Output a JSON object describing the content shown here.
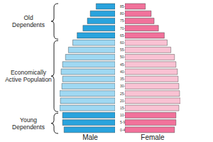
{
  "chart_data": {
    "type": "bar",
    "orientation": "horizontal",
    "tick_labels": "y",
    "categories": [
      "0-4",
      "5-9",
      "10-14",
      "15-19",
      "20-24",
      "25-29",
      "30-34",
      "35-39",
      "40-44",
      "45-49",
      "50-54",
      "55-59",
      "60-64",
      "65-69",
      "70-74",
      "75-79",
      "80-84",
      "85-89"
    ],
    "series": [
      {
        "name": "Male",
        "colors": [
          "#29a3dd",
          "#29a3dd",
          "#29a3dd",
          "#9fd8f2",
          "#9fd8f2",
          "#9fd8f2",
          "#9fd8f2",
          "#9fd8f2",
          "#9fd8f2",
          "#9fd8f2",
          "#9fd8f2",
          "#9fd8f2",
          "#9fd8f2",
          "#29a3dd",
          "#29a3dd",
          "#29a3dd",
          "#29a3dd",
          "#29a3dd"
        ],
        "values": [
          70,
          72,
          72,
          76,
          75,
          76,
          73,
          72,
          74,
          72,
          68,
          64,
          58,
          52,
          44,
          38,
          34,
          26
        ]
      },
      {
        "name": "Female",
        "colors": [
          "#f1729b",
          "#f1729b",
          "#f1729b",
          "#f9c2d3",
          "#f9c2d3",
          "#f9c2d3",
          "#f9c2d3",
          "#f9c2d3",
          "#f9c2d3",
          "#f9c2d3",
          "#f9c2d3",
          "#f9c2d3",
          "#f9c2d3",
          "#f1729b",
          "#f1729b",
          "#f1729b",
          "#f1729b",
          "#f1729b"
        ],
        "values": [
          68,
          70,
          70,
          74,
          76,
          75,
          74,
          73,
          72,
          70,
          68,
          63,
          58,
          54,
          46,
          40,
          36,
          28
        ]
      }
    ],
    "annotations": [
      "Old Dependents",
      "Economically Active Population",
      "Young Dependents"
    ]
  }
}
